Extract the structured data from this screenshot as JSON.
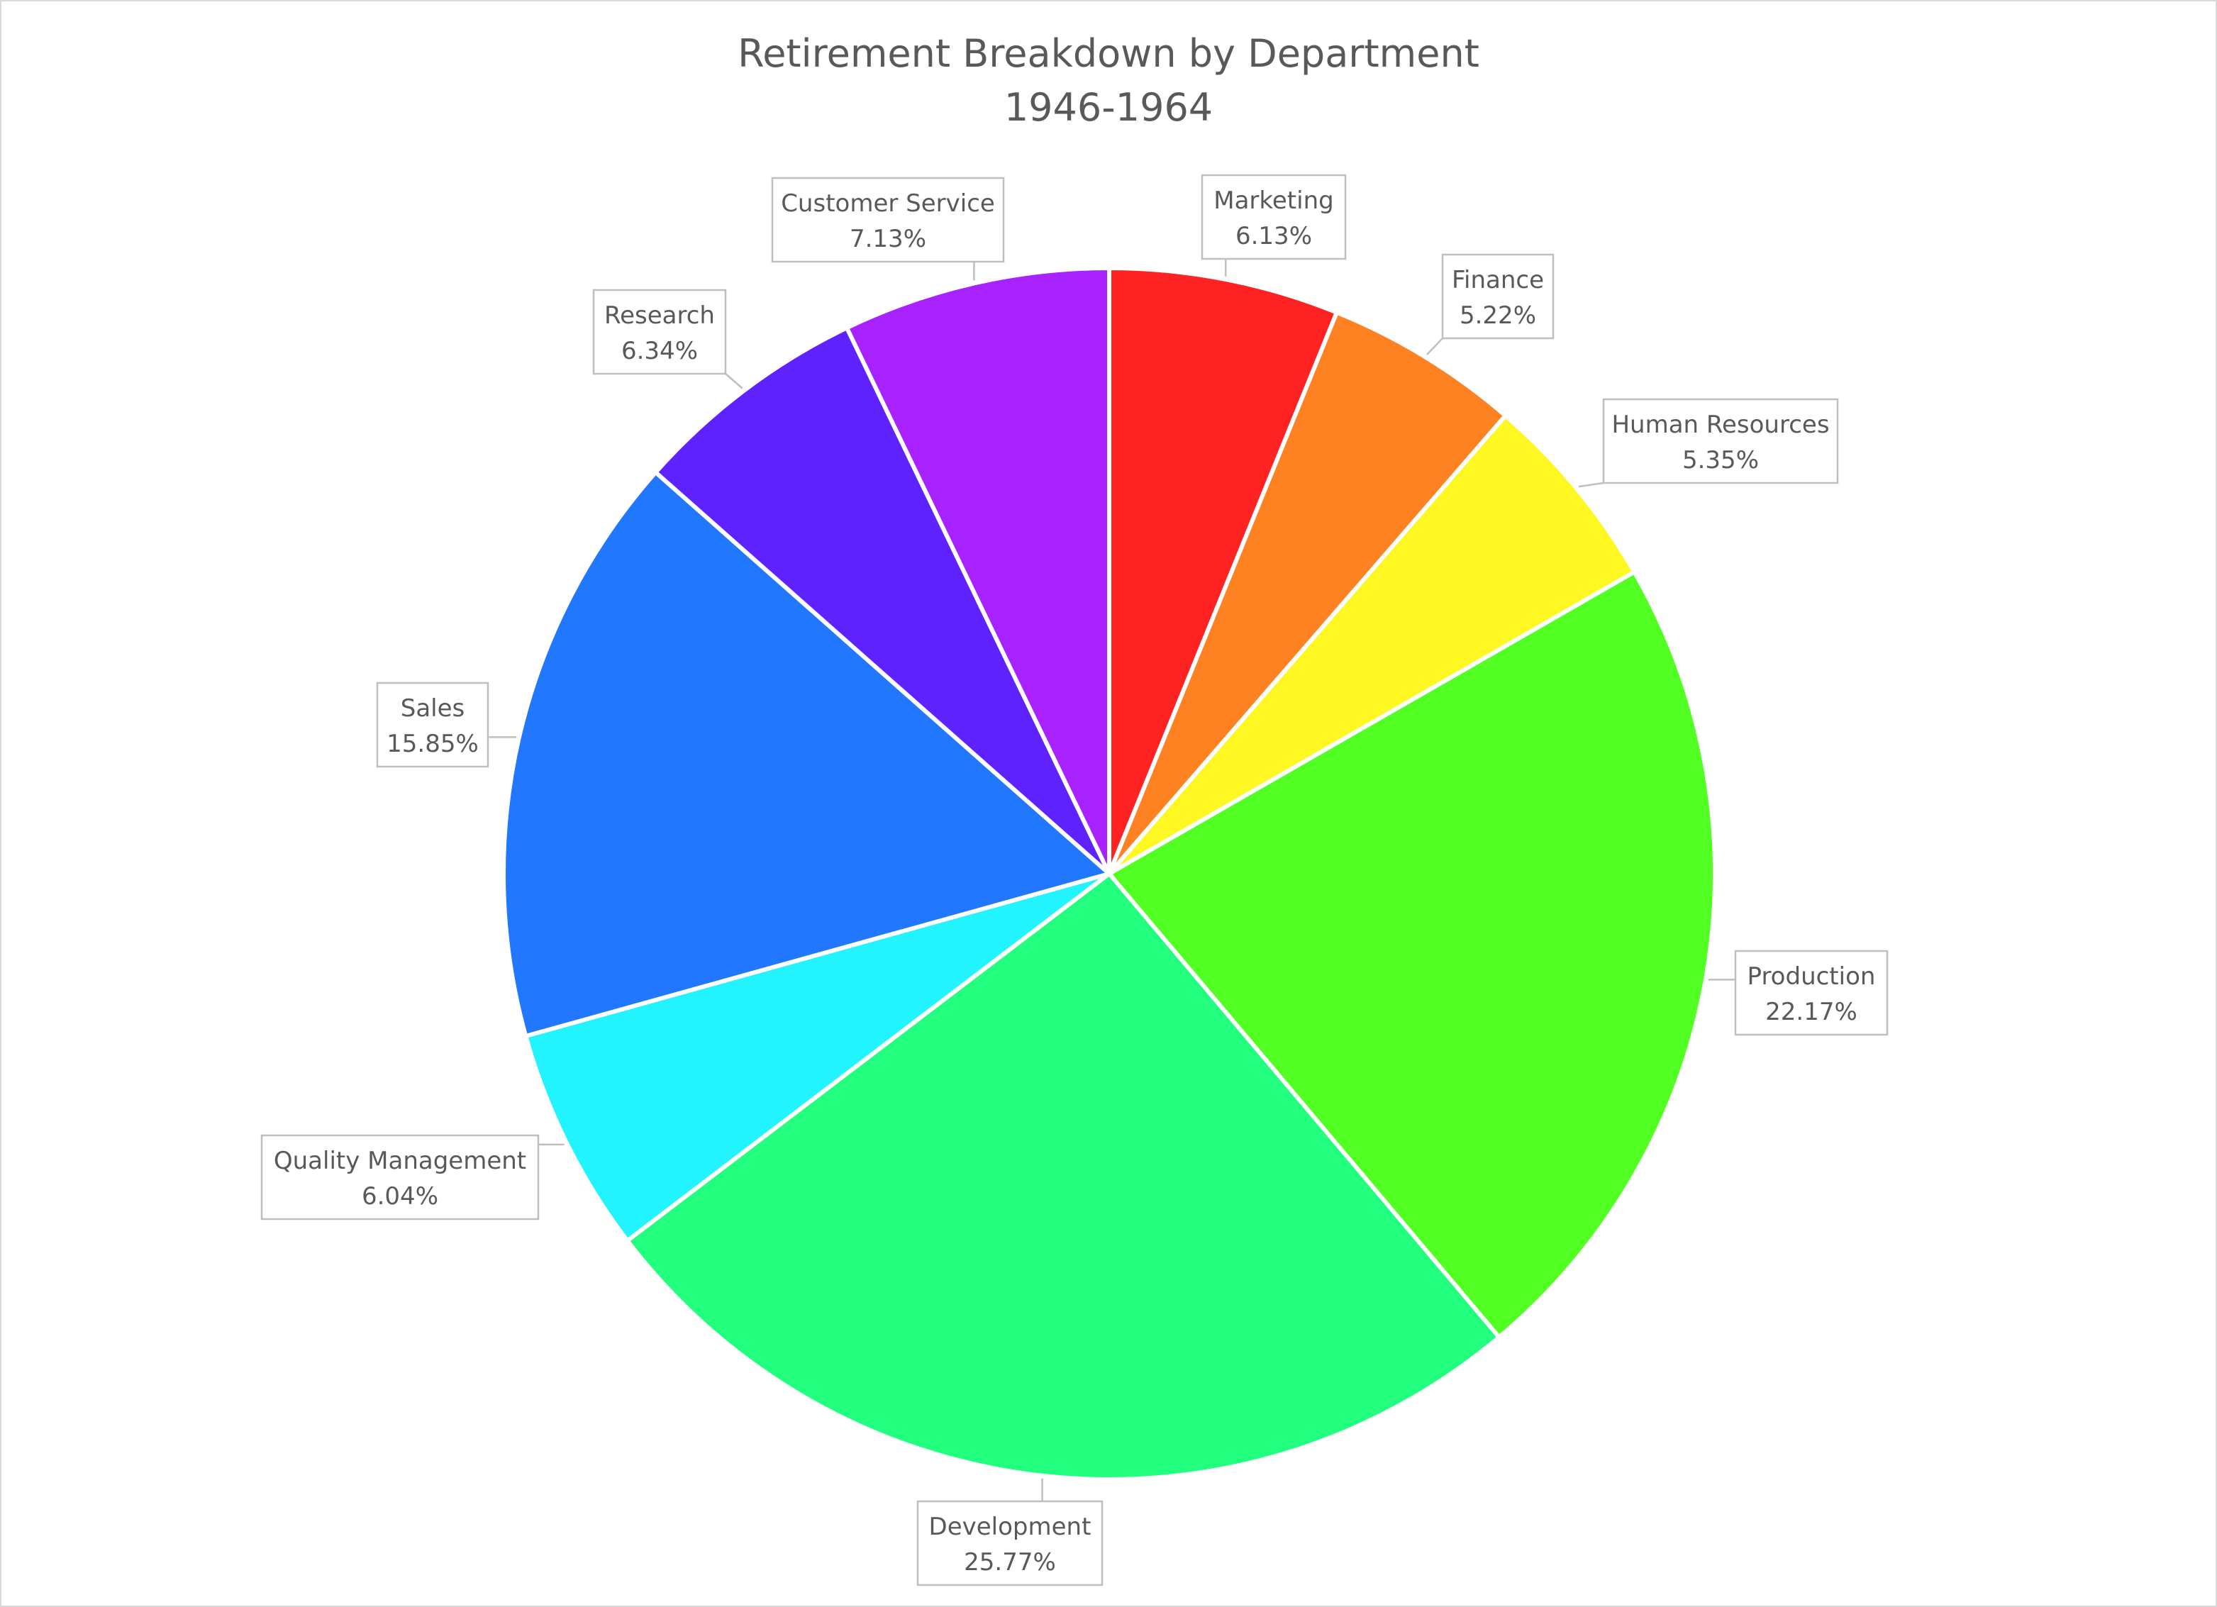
{
  "chart_data": {
    "type": "pie",
    "title": "Retirement Breakdown by Department",
    "subtitle": "1946-1964",
    "legend": "none",
    "slices": [
      {
        "label": "Marketing",
        "value": 6.13,
        "display": "6.13%",
        "color": "#ff2222"
      },
      {
        "label": "Finance",
        "value": 5.22,
        "display": "5.22%",
        "color": "#ff8222"
      },
      {
        "label": "Human Resources",
        "value": 5.35,
        "display": "5.35%",
        "color": "#fff722"
      },
      {
        "label": "Production",
        "value": 22.17,
        "display": "22.17%",
        "color": "#52ff22"
      },
      {
        "label": "Development",
        "value": 25.77,
        "display": "25.77%",
        "color": "#22ff7f"
      },
      {
        "label": "Quality Management",
        "value": 6.04,
        "display": "6.04%",
        "color": "#22f4ff"
      },
      {
        "label": "Sales",
        "value": 15.85,
        "display": "15.85%",
        "color": "#2277ff"
      },
      {
        "label": "Research",
        "value": 6.34,
        "display": "6.34%",
        "color": "#5e22ff"
      },
      {
        "label": "Customer Service",
        "value": 7.13,
        "display": "7.13%",
        "color": "#a722ff"
      }
    ]
  }
}
